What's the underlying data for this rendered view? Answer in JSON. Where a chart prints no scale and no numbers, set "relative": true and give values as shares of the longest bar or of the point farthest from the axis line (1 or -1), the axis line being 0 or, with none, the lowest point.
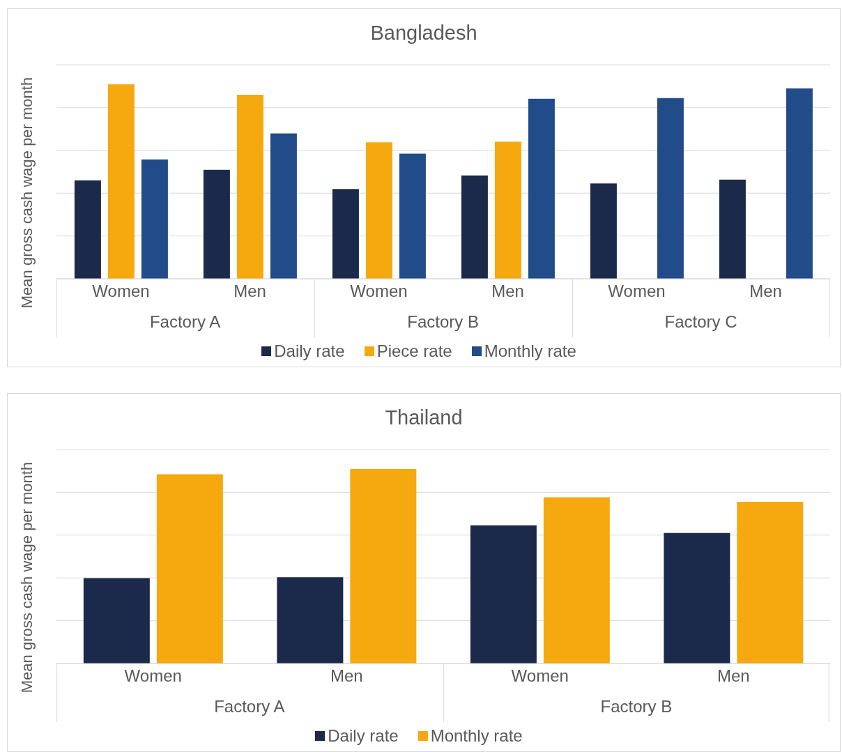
{
  "chart_data": [
    {
      "type": "bar",
      "title": "Bangladesh",
      "ylabel": "Mean gross cash wage per month",
      "relative": true,
      "grid": "y",
      "legend": "bottom",
      "categories": [
        "Women",
        "Men",
        "Women",
        "Men",
        "Women",
        "Men"
      ],
      "annotations": [
        "Factory A",
        "Factory B",
        "Factory C"
      ],
      "series": [
        {
          "name": "Daily rate",
          "color": "#1b2a4a",
          "values": [
            0.506,
            0.56,
            0.461,
            0.531,
            0.49,
            0.51
          ]
        },
        {
          "name": "Piece rate",
          "color": "#f5a90f",
          "values": [
            1,
            0.946,
            0.701,
            0.705,
            null,
            null
          ]
        },
        {
          "name": "Monthly rate",
          "color": "#224b8a",
          "values": [
            0.614,
            0.747,
            0.643,
            0.925,
            0.929,
            0.979
          ]
        }
      ]
    },
    {
      "type": "bar",
      "title": "Thailand",
      "ylabel": "Mean gross cash wage per month",
      "relative": true,
      "grid": "y",
      "legend": "bottom",
      "categories": [
        "Women",
        "Men",
        "Women",
        "Men"
      ],
      "annotations": [
        "Factory A",
        "Factory B"
      ],
      "series": [
        {
          "name": "Daily rate",
          "color": "#1b2a4a",
          "values": [
            0.439,
            0.443,
            0.71,
            0.671
          ]
        },
        {
          "name": "Monthly rate",
          "color": "#f5a90f",
          "values": [
            0.973,
            1,
            0.855,
            0.831
          ]
        }
      ]
    }
  ]
}
